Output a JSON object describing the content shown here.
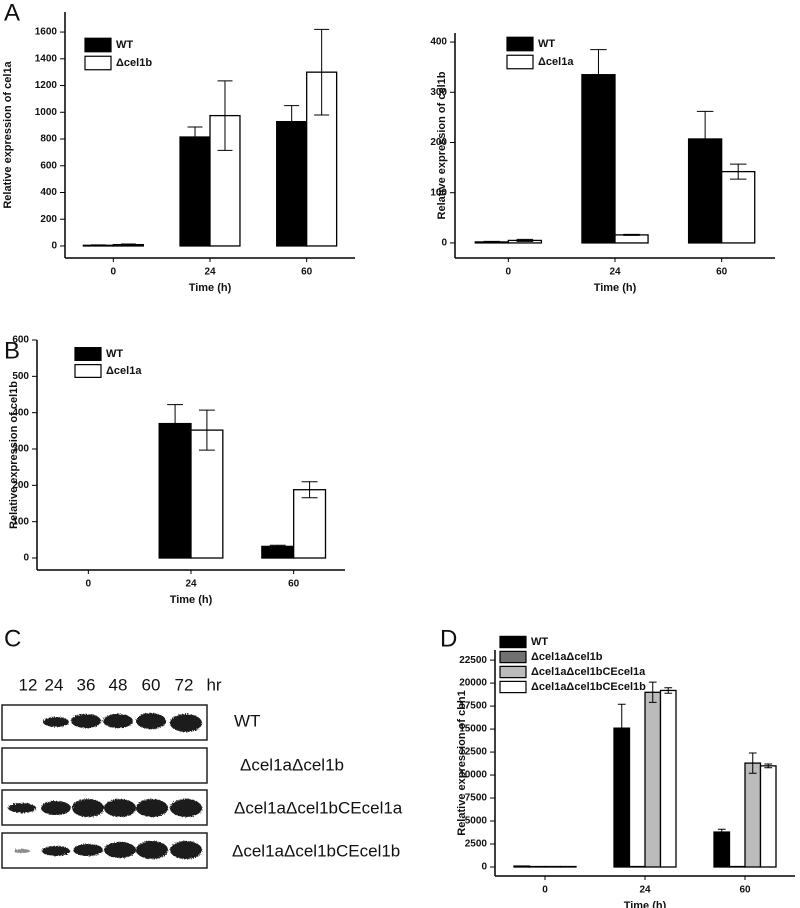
{
  "chart_data": [
    {
      "type": "bar",
      "panel": "A",
      "categories": [
        "0",
        "24",
        "60"
      ],
      "x_label": "Time (h)",
      "y_label": "Relative expression of cel1a",
      "ylim": [
        -90,
        1750
      ],
      "yticks": [
        0,
        200,
        400,
        600,
        800,
        1000,
        1200,
        1400,
        1600
      ],
      "legend": "upper left",
      "series": [
        {
          "name": "WT",
          "color": "#000000",
          "values": [
            5,
            815,
            930
          ],
          "errors": [
            3,
            75,
            120
          ]
        },
        {
          "name": "Δcel1b",
          "color": "#ffffff",
          "values": [
            10,
            975,
            1300
          ],
          "errors": [
            5,
            260,
            320
          ]
        }
      ]
    },
    {
      "type": "bar",
      "categories": [
        "0",
        "24",
        "60"
      ],
      "x_label": "Time (h)",
      "y_label": "Relative expression of cel1b",
      "ylim": [
        -30,
        418
      ],
      "yticks": [
        0,
        100,
        200,
        300,
        400
      ],
      "legend": "upper left",
      "series": [
        {
          "name": "WT",
          "color": "#000000",
          "values": [
            2,
            335,
            207
          ],
          "errors": [
            1,
            50,
            55
          ]
        },
        {
          "name": "Δcel1a",
          "color": "#ffffff",
          "values": [
            5,
            16,
            142
          ],
          "errors": [
            2,
            1,
            15
          ]
        }
      ]
    },
    {
      "type": "bar",
      "panel": "B",
      "categories": [
        "0",
        "24",
        "60"
      ],
      "x_label": "Time (h)",
      "y_label": "Relative expression of cel1b",
      "ylim": [
        -33,
        600
      ],
      "yticks": [
        0,
        100,
        200,
        300,
        400,
        500,
        600
      ],
      "legend": "upper left",
      "series": [
        {
          "name": "WT",
          "color": "#000000",
          "values": [
            0,
            370,
            32
          ],
          "errors": [
            0,
            52,
            3
          ]
        },
        {
          "name": "Δcel1a",
          "color": "#ffffff",
          "values": [
            0,
            352,
            188
          ],
          "errors": [
            0,
            55,
            22
          ]
        }
      ]
    },
    {
      "type": "bar",
      "panel": "D",
      "categories": [
        "0",
        "24",
        "60"
      ],
      "x_label": "Time (h)",
      "y_label": "Relative expression of cbh1",
      "ylim": [
        -980,
        23600
      ],
      "yticks": [
        0,
        2500,
        5000,
        7500,
        10000,
        12500,
        15000,
        17500,
        20000,
        22500
      ],
      "legend": "upper left",
      "series": [
        {
          "name": "WT",
          "color": "#000000",
          "values": [
            100,
            15100,
            3800
          ],
          "errors": [
            0,
            2600,
            300
          ]
        },
        {
          "name": "Δcel1aΔcel1b",
          "color": "#707070",
          "values": [
            50,
            50,
            50
          ],
          "errors": [
            0,
            0,
            0
          ]
        },
        {
          "name": "Δcel1aΔcel1bCEcel1a",
          "color": "#bbbbbb",
          "values": [
            50,
            19000,
            11300
          ],
          "errors": [
            0,
            1100,
            1100
          ]
        },
        {
          "name": "Δcel1aΔcel1bCEcel1b",
          "color": "#ffffff",
          "values": [
            50,
            19200,
            11000
          ],
          "errors": [
            0,
            300,
            200
          ]
        }
      ]
    }
  ],
  "blot": {
    "panel": "C",
    "lanes": [
      12,
      24,
      36,
      48,
      60,
      72
    ],
    "unit": "hr",
    "rows": [
      "WT",
      "Δcel1aΔcel1b",
      "Δcel1aΔcel1bCEcel1a",
      "Δcel1aΔcel1bCEcel1b"
    ]
  }
}
